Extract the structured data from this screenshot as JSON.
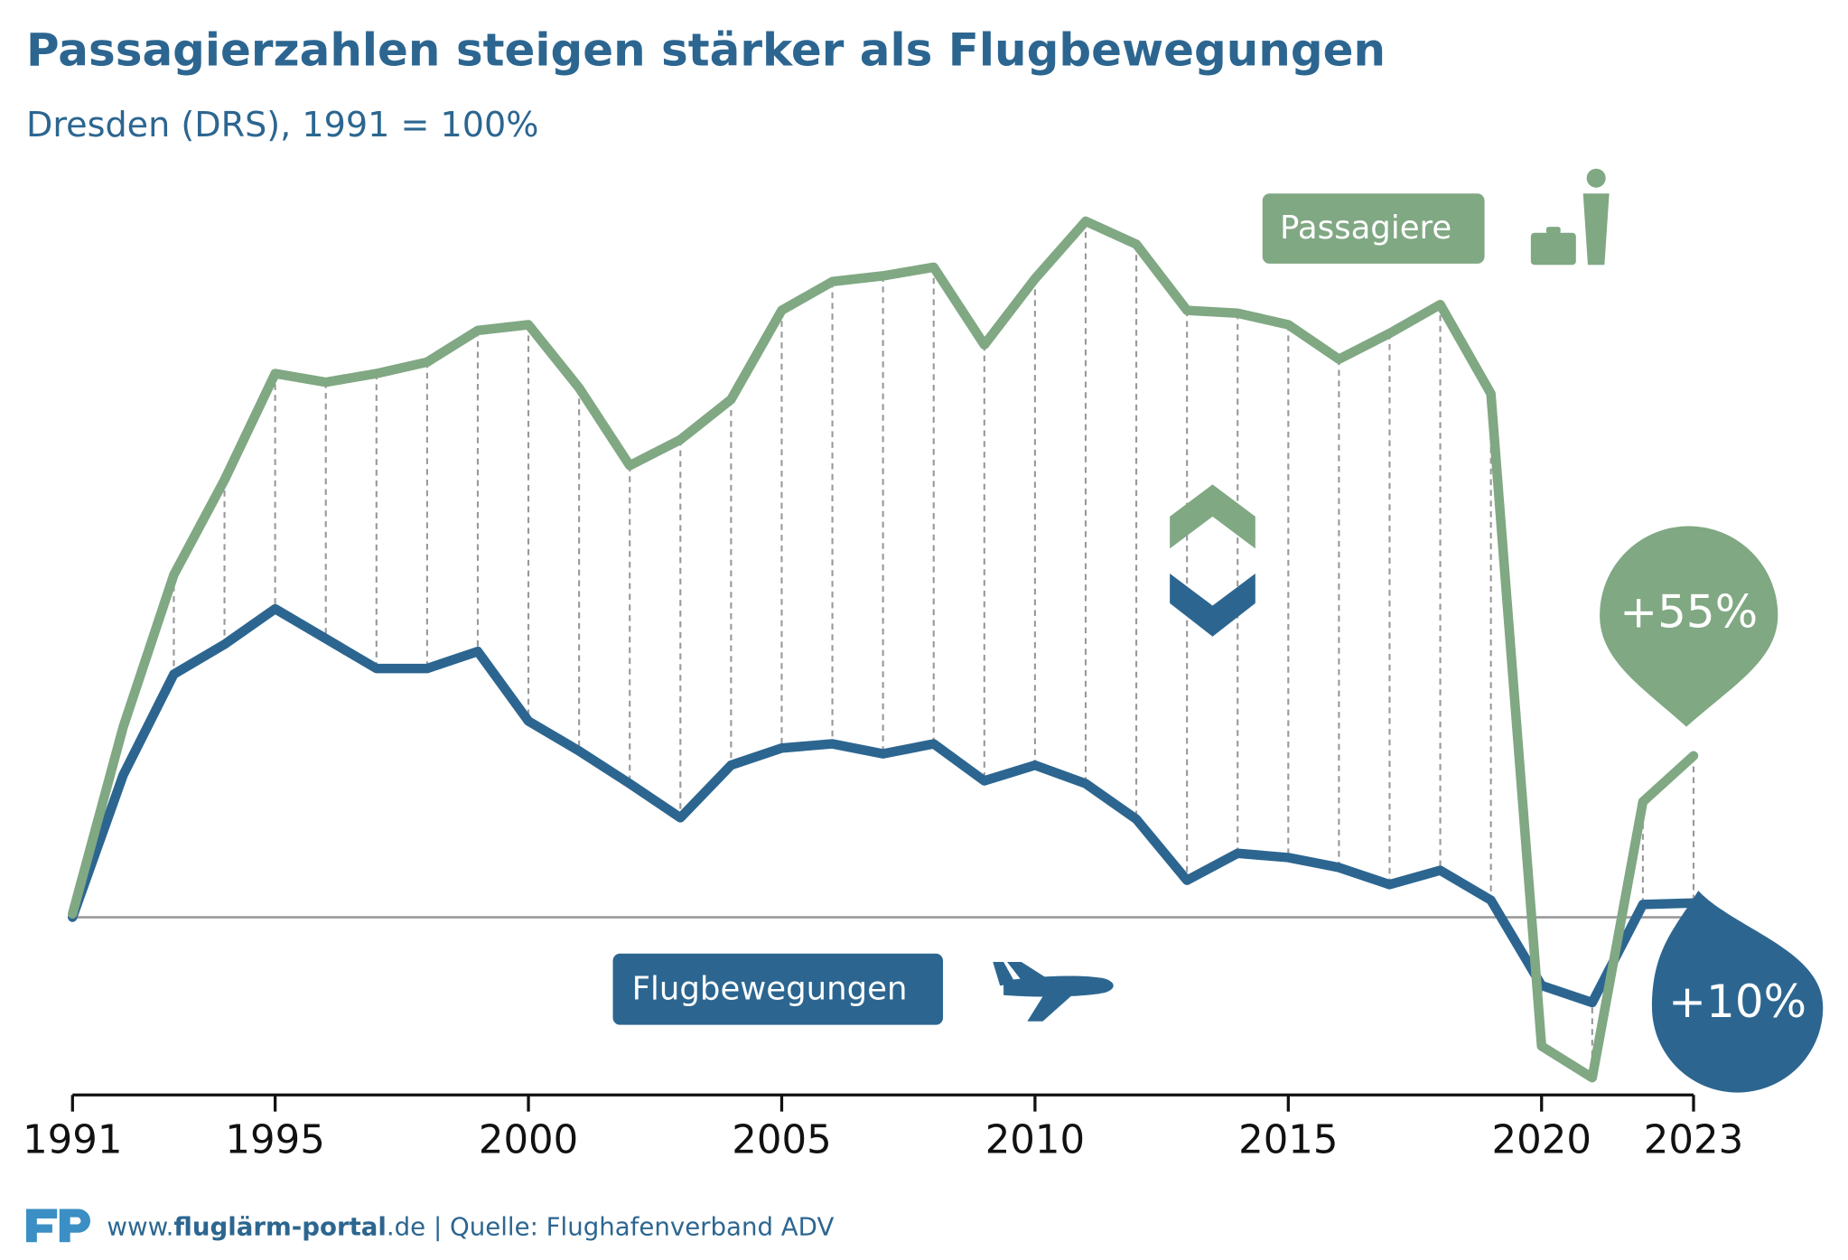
{
  "chart_data": {
    "type": "line",
    "title": "Passagierzahlen steigen stärker als Flugbewegungen",
    "subtitle": "Dresden (DRS), 1991 = 100%",
    "x": [
      1991,
      1992,
      1993,
      1994,
      1995,
      1996,
      1997,
      1998,
      1999,
      2000,
      2001,
      2002,
      2003,
      2004,
      2005,
      2006,
      2007,
      2008,
      2009,
      2010,
      2011,
      2012,
      2013,
      2014,
      2015,
      2016,
      2017,
      2018,
      2019,
      2020,
      2021,
      2022,
      2023
    ],
    "xlim": [
      1991,
      2023
    ],
    "xticks": [
      1991,
      1995,
      2000,
      2005,
      2010,
      2015,
      2020,
      2023
    ],
    "ylim": [
      -25,
      620
    ],
    "y2lim": [
      37,
      356
    ],
    "reference": 100,
    "series": [
      {
        "name": "Passagiere",
        "color": "#80a883",
        "axis": "y2",
        "values": [
          100,
          165,
          218,
          251,
          288,
          285,
          288,
          292,
          303,
          305,
          283,
          256,
          265,
          279,
          310,
          320,
          322,
          325,
          298,
          321,
          341,
          333,
          310,
          309,
          305,
          293,
          302,
          312,
          281,
          54,
          43,
          139,
          155
        ],
        "annotation": "+55%"
      },
      {
        "name": "Flugbewegungen",
        "color": "#2c6690",
        "values": [
          100,
          200,
          271,
          292,
          317,
          296,
          275,
          275,
          287,
          238,
          217,
          194,
          170,
          207,
          219,
          222,
          215,
          222,
          196,
          207,
          194,
          169,
          126,
          145,
          142,
          135,
          123,
          133,
          112,
          52,
          40,
          109,
          110
        ],
        "annotation": "+10%"
      }
    ],
    "footer": {
      "prefix": "www.",
      "site": "fluglärm-portal",
      "suffix": ".de",
      "source": " | Quelle: Flughafenverband ADV"
    }
  }
}
